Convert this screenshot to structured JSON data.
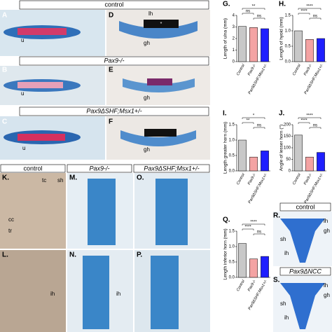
{
  "headers": [
    "control",
    "Pax9-/-",
    "Pax9ΔSHF;Msx1+/-",
    "control",
    "Pax9-/-",
    "Pax9ΔSHF;Msx1+/-",
    "control",
    "Pax9ΔNCC"
  ],
  "panel_letters": [
    "A",
    "B",
    "C",
    "D",
    "E",
    "F",
    "K.",
    "L.",
    "M.",
    "N.",
    "O.",
    "P.",
    "R.",
    "S."
  ],
  "labels": [
    "u",
    "u",
    "u",
    "lh",
    "gh",
    "*",
    "gh",
    "gh",
    "tc",
    "sh",
    "cc",
    "tr",
    "ih",
    "ih",
    "lh",
    "gh",
    "sh",
    "ih",
    "lh",
    "gh",
    "sh",
    "ih"
  ],
  "chart_data": [
    {
      "type": "bar",
      "panel": "G.",
      "y_label": "Length of ulna (mm)",
      "categories": [
        "Control",
        "Pax9-/-",
        "Pax9ΔSHF;Msx1+/-"
      ],
      "values": [
        3.05,
        2.95,
        2.85
      ],
      "colors": [
        "#c8c8c8",
        "#f4a3a3",
        "#1f1fff"
      ],
      "ylim": [
        0,
        4
      ],
      "yticks": [
        0,
        1,
        2,
        3,
        4
      ],
      "annotations": [
        "**",
        "ns",
        "ns"
      ]
    },
    {
      "type": "bar",
      "panel": "H.",
      "y_label": "Length of hyoid (mm)",
      "categories": [
        "Control",
        "Pax9-/-",
        "Pax9ΔSHF;Msx1+/-"
      ],
      "values": [
        1.0,
        0.72,
        0.75
      ],
      "colors": [
        "#c8c8c8",
        "#f4a3a3",
        "#1f1fff"
      ],
      "ylim": [
        0,
        1.5
      ],
      "yticks": [
        {
          "value": 0,
          "label": "0.0"
        },
        0.5,
        {
          "value": 1,
          "label": "1.0"
        },
        1.5
      ],
      "annotations": [
        "****",
        "****",
        "ns"
      ]
    },
    {
      "type": "bar",
      "panel": "I.",
      "y_label": "Length greater horn (mm)",
      "categories": [
        "Control",
        "Pax9-/-",
        "Pax9ΔSHF;Msx1+/-"
      ],
      "values": [
        1.0,
        0.45,
        0.65
      ],
      "colors": [
        "#c8c8c8",
        "#f4a3a3",
        "#1f1fff"
      ],
      "ylim": [
        0,
        1.5
      ],
      "yticks": [
        {
          "value": 0,
          "label": "0.0"
        },
        0.5,
        {
          "value": 1,
          "label": "1.0"
        },
        1.5
      ],
      "annotations": [
        "*",
        "**",
        "ns"
      ]
    },
    {
      "type": "bar",
      "panel": "J.",
      "y_label": "Angle of lesser horn (°)",
      "categories": [
        "Control",
        "Pax9-/-",
        "Pax9ΔSHF;Msx1+/-"
      ],
      "values": [
        155,
        60,
        80
      ],
      "colors": [
        "#c8c8c8",
        "#f4a3a3",
        "#1f1fff"
      ],
      "ylim": [
        0,
        200
      ],
      "yticks": [
        0,
        50,
        100,
        150,
        200
      ],
      "annotations": [
        "****",
        "****",
        "ns"
      ]
    },
    {
      "type": "bar",
      "panel": "Q.",
      "y_label": "Length inferior horn (mm)",
      "categories": [
        "Control",
        "Pax9-/-",
        "Pax9ΔSHF;Msx1+/-"
      ],
      "values": [
        1.1,
        0.6,
        0.68
      ],
      "colors": [
        "#c8c8c8",
        "#f4a3a3",
        "#1f1fff"
      ],
      "ylim": [
        0,
        1.5
      ],
      "yticks": [
        {
          "value": 0,
          "label": "0.0"
        },
        0.5,
        {
          "value": 1,
          "label": "1.0"
        },
        1.5
      ],
      "annotations": [
        "****",
        "****",
        "ns"
      ]
    }
  ]
}
